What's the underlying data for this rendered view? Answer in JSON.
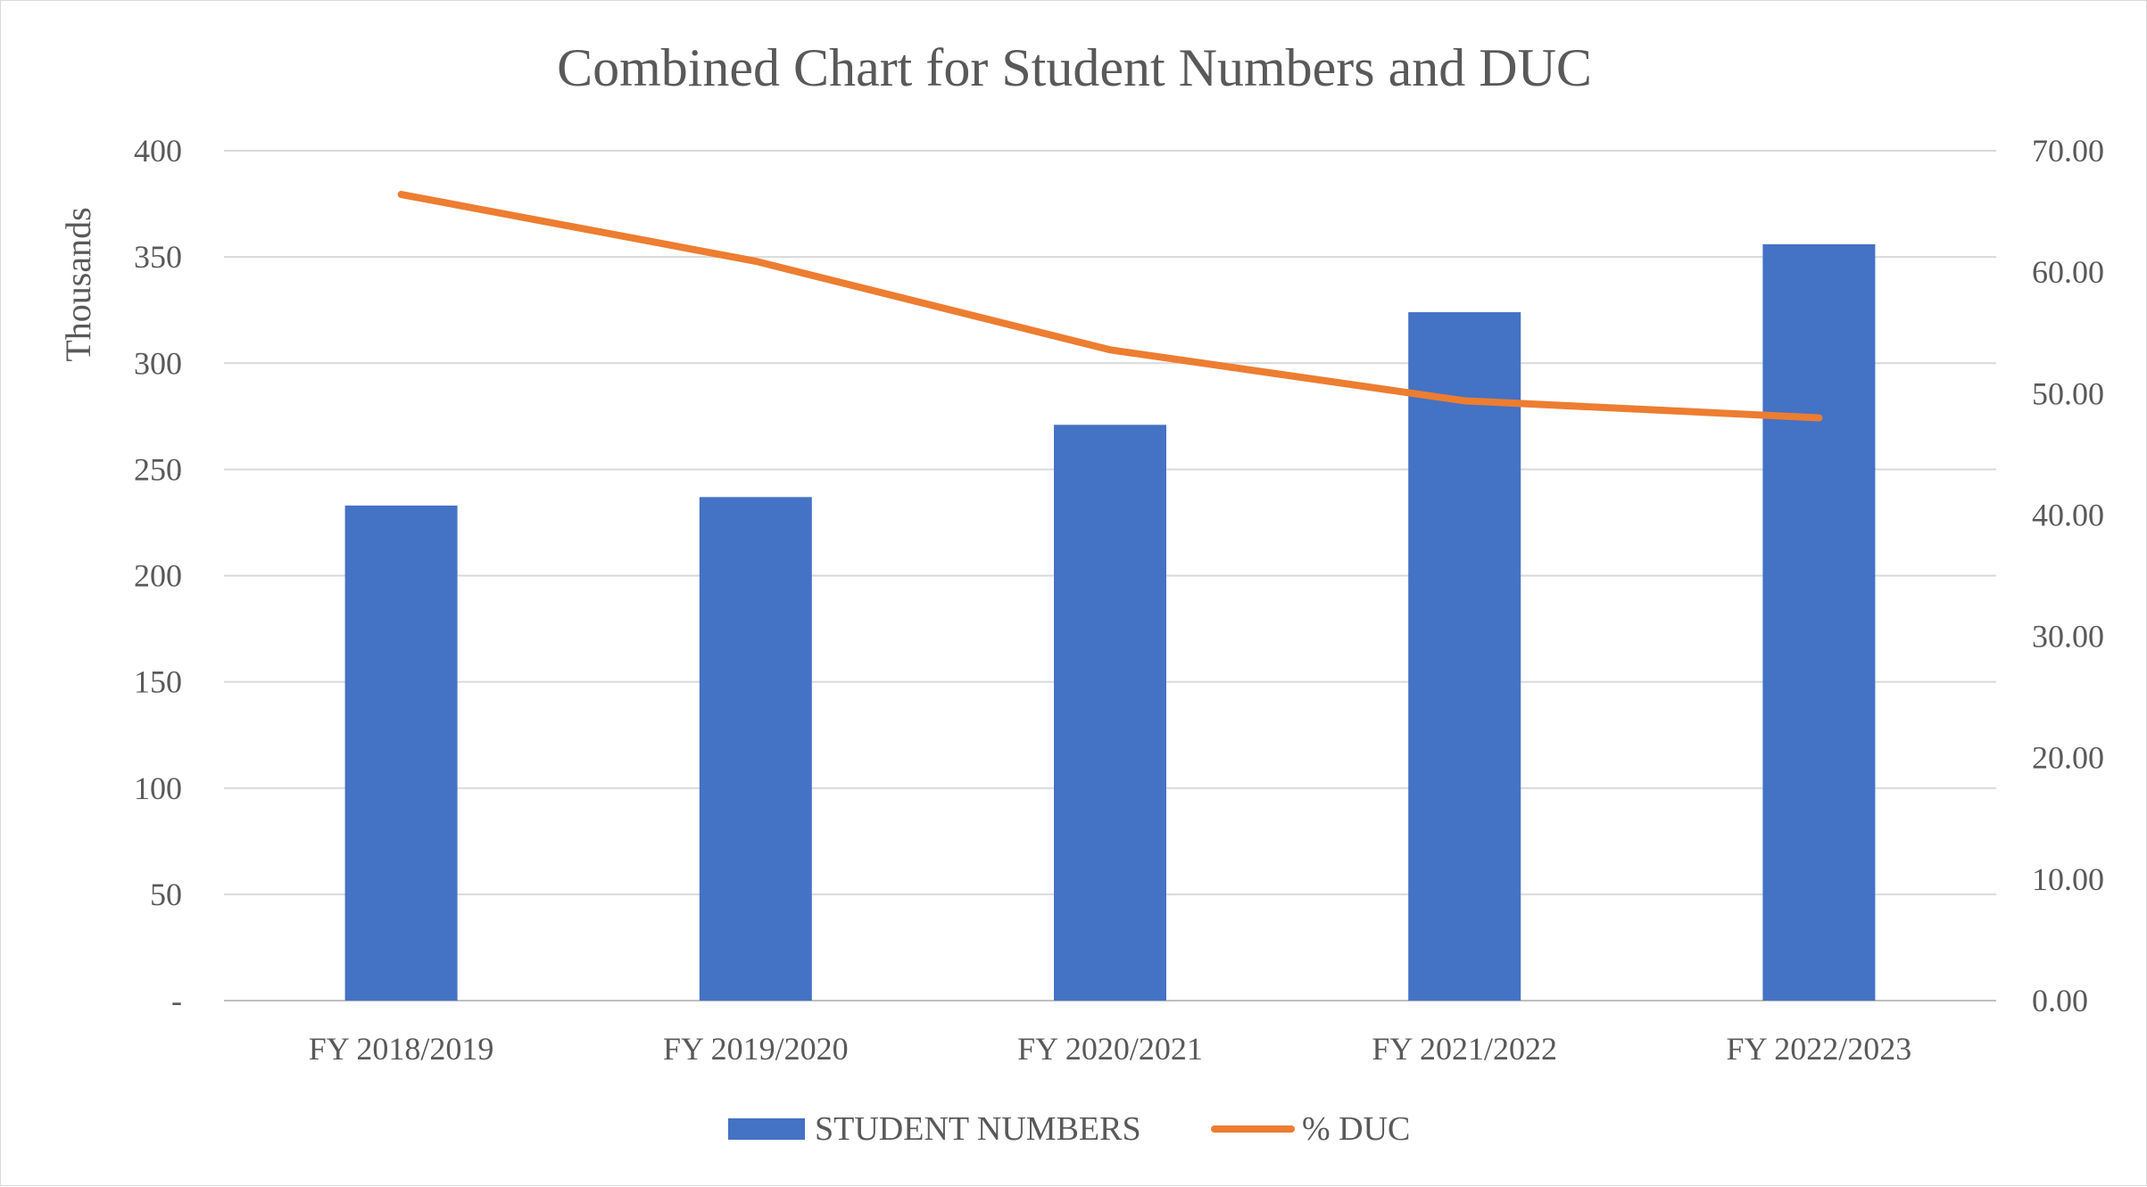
{
  "chart_data": {
    "type": "bar",
    "title": "Combined Chart for Student Numbers and DUC",
    "categories": [
      "FY 2018/2019",
      "FY 2019/2020",
      "FY 2020/2021",
      "FY 2021/2022",
      "FY 2022/2023"
    ],
    "series": [
      {
        "name": "STUDENT NUMBERS",
        "type": "bar",
        "axis": "left",
        "values": [
          233,
          237,
          271,
          324,
          356
        ],
        "color": "#4472C4"
      },
      {
        "name": "% DUC",
        "type": "line",
        "axis": "right",
        "values": [
          66.4,
          60.9,
          53.6,
          49.4,
          48.0
        ],
        "color": "#ED7D31"
      }
    ],
    "ylabel": "Thousands",
    "ylim": [
      0,
      400
    ],
    "yticks": [
      "-",
      "50",
      "100",
      "150",
      "200",
      "250",
      "300",
      "350",
      "400"
    ],
    "y2lim": [
      0,
      70
    ],
    "y2ticks": [
      "0.00",
      "10.00",
      "20.00",
      "30.00",
      "40.00",
      "50.00",
      "60.00",
      "70.00"
    ],
    "grid": true,
    "legend": "bottom"
  }
}
